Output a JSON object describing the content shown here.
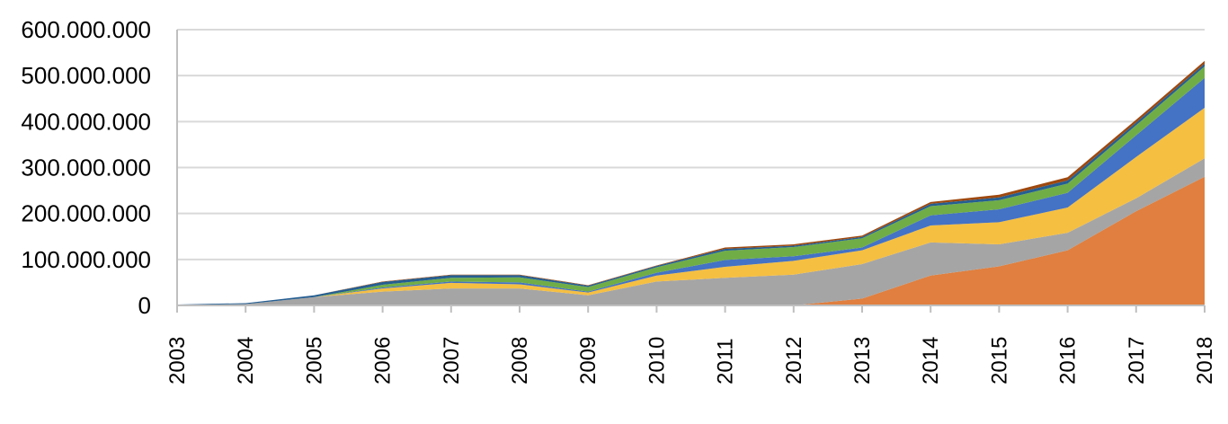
{
  "chart_data": {
    "type": "area",
    "stacked": true,
    "x": [
      "2003",
      "2004",
      "2005",
      "2006",
      "2007",
      "2008",
      "2009",
      "2010",
      "2011",
      "2012",
      "2013",
      "2014",
      "2015",
      "2016",
      "2017",
      "2018"
    ],
    "y_tick_labels": [
      "0",
      "100.000.000",
      "200.000.000",
      "300.000.000",
      "400.000.000",
      "500.000.000",
      "600.000.000"
    ],
    "ylim": [
      0,
      600000000
    ],
    "grid": true,
    "legend": "none",
    "title": "",
    "xlabel": "",
    "ylabel": "",
    "series": [
      {
        "color": "#e07f3f",
        "values": [
          0,
          0,
          0,
          0,
          0,
          0,
          0,
          0,
          0,
          0,
          15000000,
          65000000,
          85000000,
          120000000,
          205000000,
          280000000
        ]
      },
      {
        "color": "#a5a5a5",
        "values": [
          1000000,
          3000000,
          18000000,
          30000000,
          37000000,
          37000000,
          22000000,
          52000000,
          60000000,
          67000000,
          75000000,
          72000000,
          48000000,
          38000000,
          28000000,
          40000000
        ]
      },
      {
        "color": "#f5bf42",
        "values": [
          0,
          0,
          0,
          7000000,
          12000000,
          9000000,
          6000000,
          13000000,
          24000000,
          30000000,
          30000000,
          37000000,
          48000000,
          55000000,
          90000000,
          110000000
        ]
      },
      {
        "color": "#4472c4",
        "values": [
          0,
          0,
          0,
          2000000,
          3000000,
          4000000,
          2000000,
          6000000,
          15000000,
          10000000,
          6000000,
          22000000,
          28000000,
          32000000,
          47000000,
          65000000
        ]
      },
      {
        "color": "#70ad47",
        "values": [
          0,
          0,
          0,
          6000000,
          8000000,
          11000000,
          10000000,
          12000000,
          20000000,
          20000000,
          20000000,
          20000000,
          20000000,
          20000000,
          22000000,
          25000000
        ]
      },
      {
        "color": "#255e91",
        "values": [
          1000000,
          2000000,
          4000000,
          6000000,
          6000000,
          5000000,
          3000000,
          3000000,
          4000000,
          3000000,
          3000000,
          5000000,
          6000000,
          7000000,
          6000000,
          6000000
        ]
      },
      {
        "color": "#9e480e",
        "values": [
          0,
          0,
          0,
          1000000,
          1000000,
          1000000,
          1000000,
          1000000,
          3000000,
          3000000,
          3000000,
          4000000,
          6000000,
          7000000,
          6000000,
          6000000
        ]
      }
    ]
  }
}
